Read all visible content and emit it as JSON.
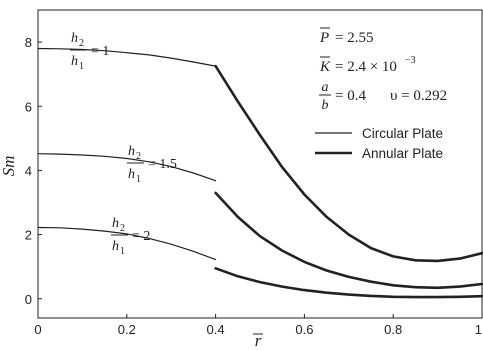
{
  "chart_data": {
    "type": "line",
    "xlabel": "r",
    "ylabel": "Sm",
    "xlim": [
      0,
      1
    ],
    "ylim": [
      -0.6,
      9
    ],
    "x_ticks": [
      0,
      0.2,
      0.4,
      0.6,
      0.8,
      1
    ],
    "x_tick_labels": [
      "0",
      "0.2",
      "0.4",
      "0.6",
      "0.8",
      "1"
    ],
    "y_ticks": [
      0,
      2,
      4,
      6,
      8
    ],
    "y_tick_labels": [
      "0",
      "2",
      "4",
      "6",
      "8"
    ],
    "legend": {
      "placement": "right",
      "entries": [
        {
          "label": "Circular Plate",
          "style": "thin"
        },
        {
          "label": "Annular Plate",
          "style": "thick"
        }
      ]
    },
    "parameters": {
      "P_label": "P",
      "P_value": "= 2.55",
      "K_label": "K",
      "K_value": "= 2.4 × 10",
      "K_exp": "−3",
      "ab_num": "a",
      "ab_den": "b",
      "ab_value": "= 0.4",
      "nu_label": "υ = 0.292"
    },
    "ratio_annotations": [
      {
        "num": "h",
        "num_sub": "2",
        "den": "h",
        "den_sub": "1",
        "value": "= 1"
      },
      {
        "num": "h",
        "num_sub": "2",
        "den": "h",
        "den_sub": "1",
        "value": "= 1.5"
      },
      {
        "num": "h",
        "num_sub": "2",
        "den": "h",
        "den_sub": "1",
        "value": "= 2"
      }
    ],
    "series": [
      {
        "style": "thin",
        "x": [
          0,
          0.05,
          0.1,
          0.15,
          0.2,
          0.25,
          0.3,
          0.35,
          0.4
        ],
        "y": [
          7.8,
          7.79,
          7.77,
          7.73,
          7.67,
          7.6,
          7.5,
          7.38,
          7.25
        ]
      },
      {
        "style": "thick",
        "x": [
          0.4,
          0.45,
          0.5,
          0.55,
          0.6,
          0.65,
          0.7,
          0.75,
          0.8,
          0.85,
          0.9,
          0.95,
          1.0
        ],
        "y": [
          7.25,
          6.15,
          5.1,
          4.1,
          3.25,
          2.55,
          2.0,
          1.58,
          1.32,
          1.2,
          1.18,
          1.25,
          1.42
        ]
      },
      {
        "style": "thin",
        "x": [
          0,
          0.05,
          0.1,
          0.15,
          0.2,
          0.25,
          0.3,
          0.35,
          0.4
        ],
        "y": [
          4.52,
          4.51,
          4.48,
          4.44,
          4.37,
          4.27,
          4.12,
          3.92,
          3.68
        ]
      },
      {
        "style": "thick",
        "x": [
          0.4,
          0.45,
          0.5,
          0.55,
          0.6,
          0.65,
          0.7,
          0.75,
          0.8,
          0.85,
          0.9,
          0.95,
          1.0
        ],
        "y": [
          3.3,
          2.55,
          1.95,
          1.5,
          1.15,
          0.88,
          0.68,
          0.53,
          0.42,
          0.36,
          0.34,
          0.38,
          0.46
        ]
      },
      {
        "style": "thin",
        "x": [
          0,
          0.05,
          0.1,
          0.15,
          0.2,
          0.25,
          0.3,
          0.35,
          0.4
        ],
        "y": [
          2.22,
          2.21,
          2.17,
          2.11,
          2.02,
          1.88,
          1.7,
          1.48,
          1.22
        ]
      },
      {
        "style": "thick",
        "x": [
          0.4,
          0.45,
          0.5,
          0.55,
          0.6,
          0.65,
          0.7,
          0.75,
          0.8,
          0.85,
          0.9,
          0.95,
          1.0
        ],
        "y": [
          0.95,
          0.7,
          0.52,
          0.38,
          0.27,
          0.19,
          0.13,
          0.09,
          0.06,
          0.05,
          0.05,
          0.06,
          0.08
        ]
      }
    ]
  }
}
